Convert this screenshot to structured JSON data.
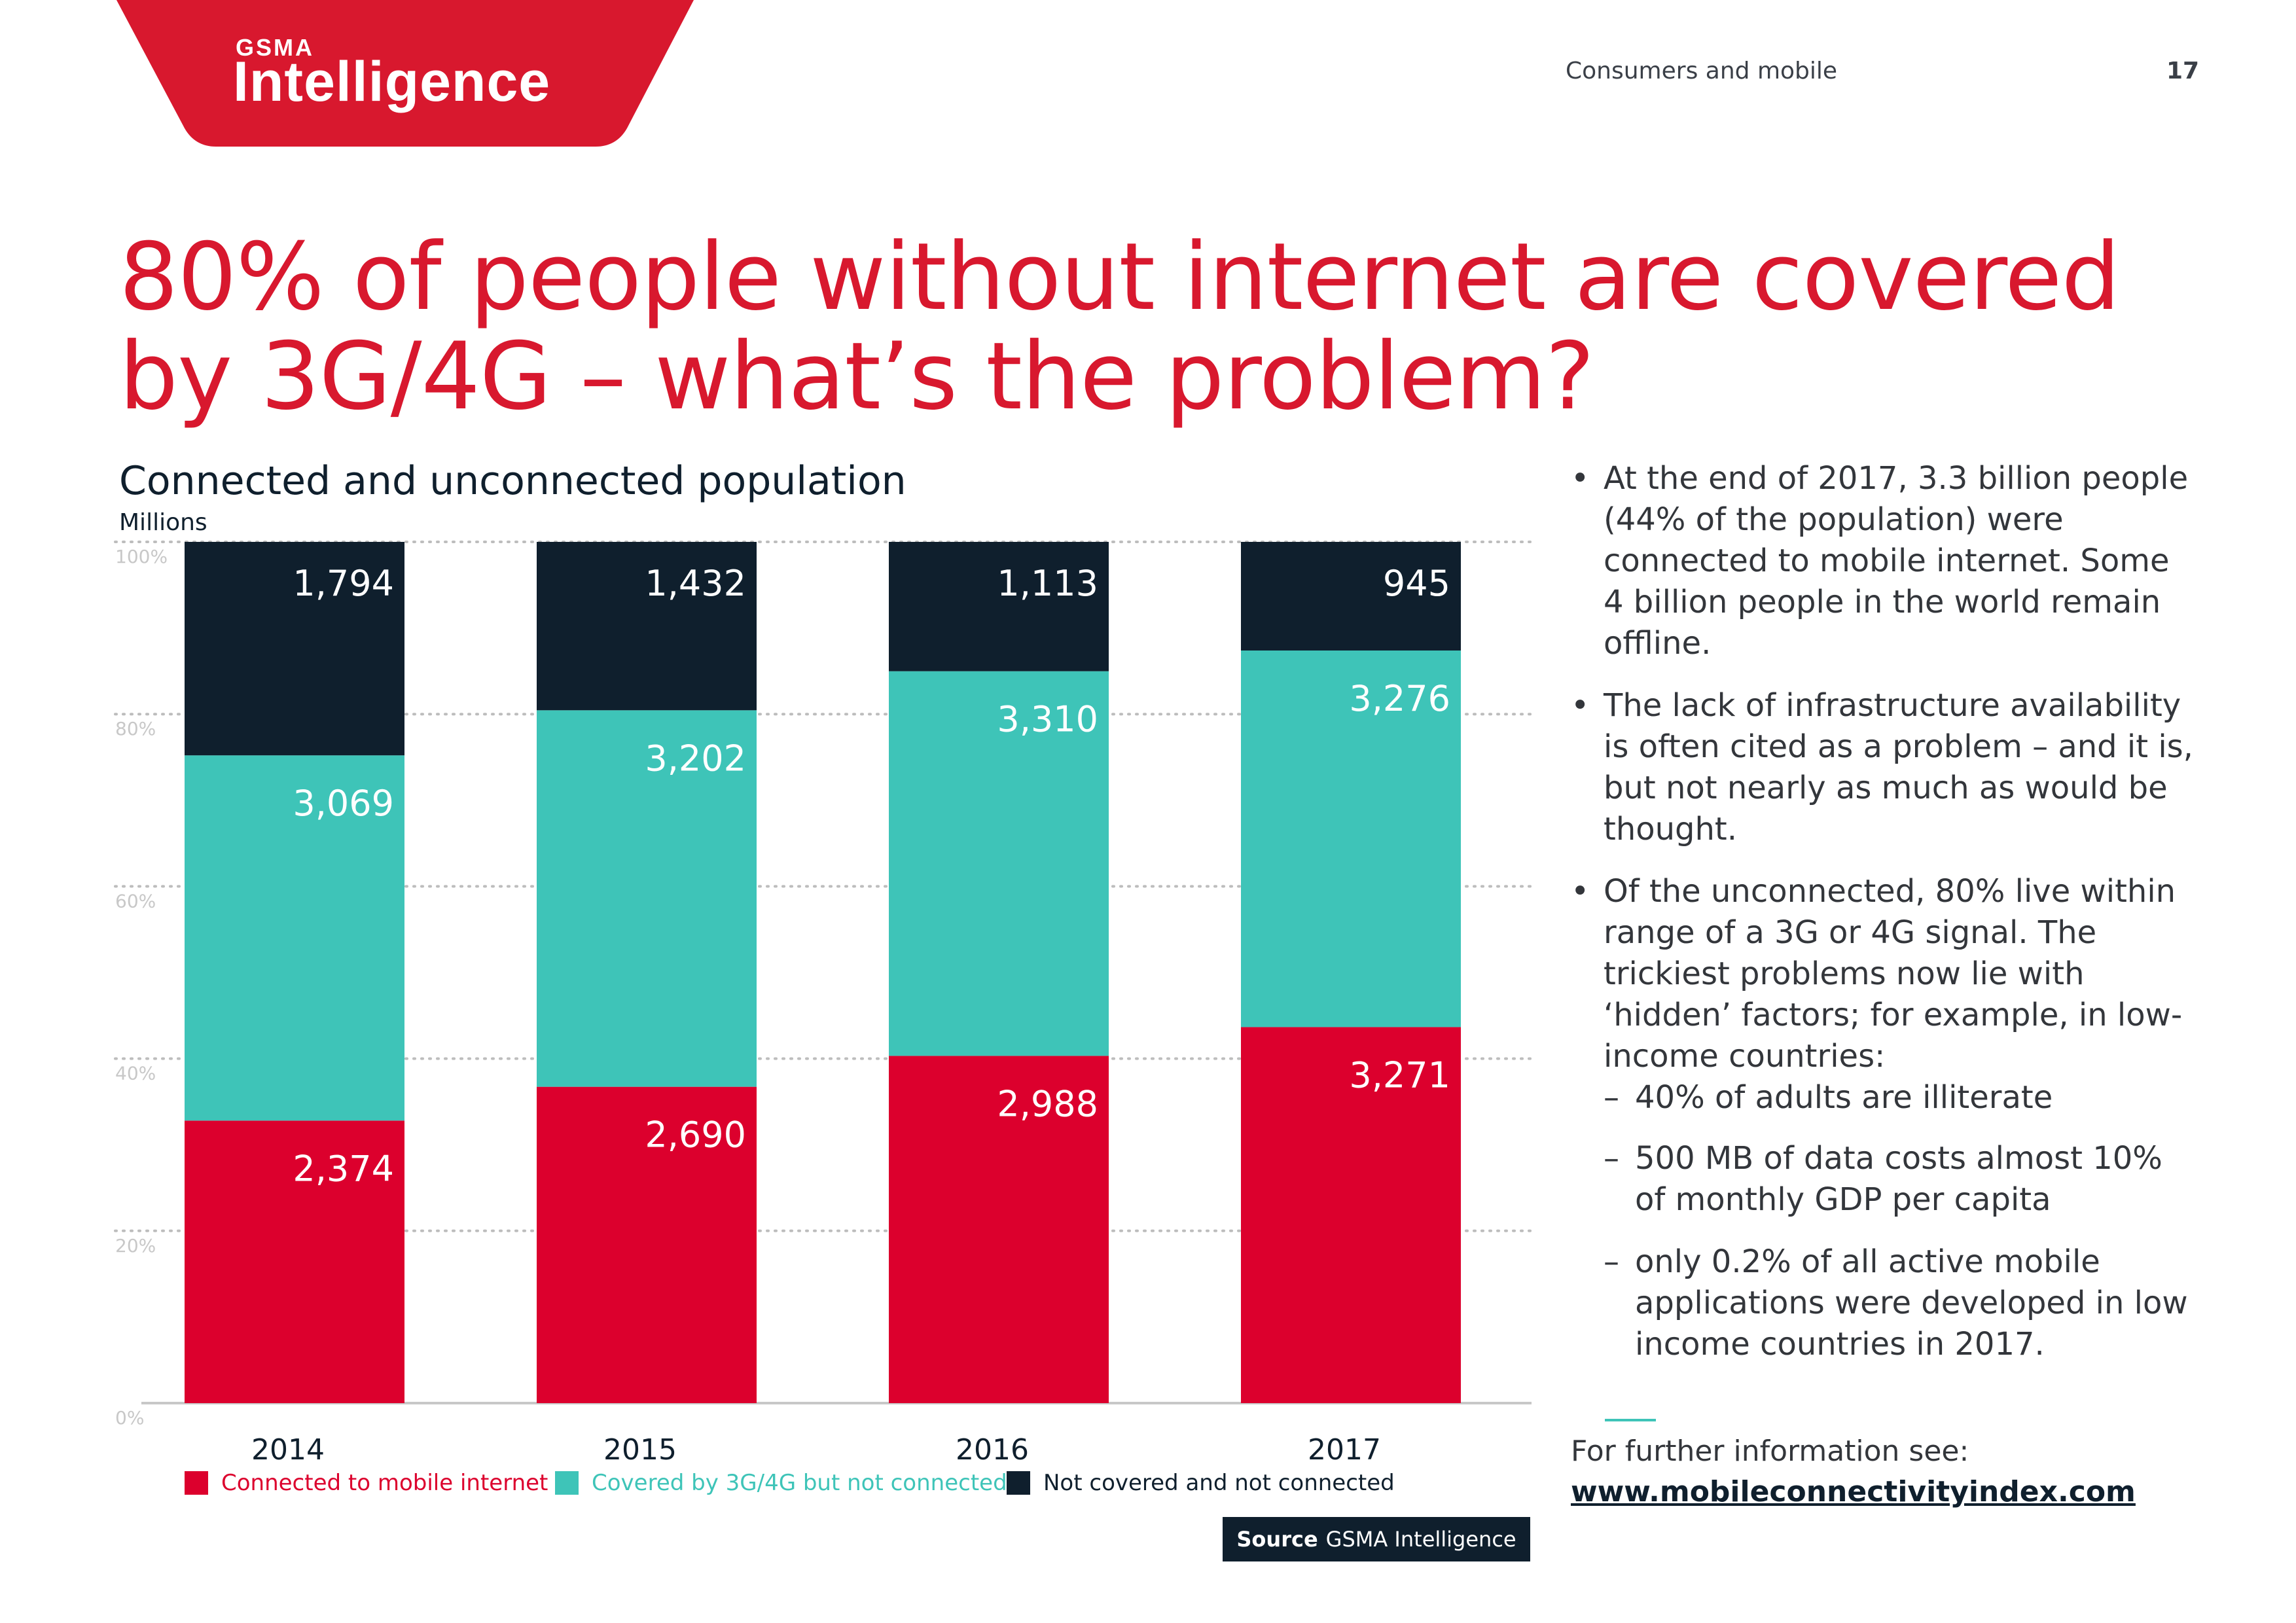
{
  "header": {
    "logo_small": "GSMA",
    "logo_big": "Intelligence",
    "section": "Consumers and mobile",
    "page_number": "17"
  },
  "title": "80% of people without internet are covered by 3G/4G – what’s the problem?",
  "colors": {
    "brand_red": "#d8182e",
    "connected": "#dc002d",
    "covered": "#3ec4b8",
    "not_covered": "#0f1f2d",
    "gridline": "#bdbdbd",
    "axis_tick": "#c8c8c8"
  },
  "chart_data": {
    "type": "bar",
    "stacked": true,
    "normalized": true,
    "title": "Connected and unconnected population",
    "unit_label": "Millions",
    "categories": [
      "2014",
      "2015",
      "2016",
      "2017"
    ],
    "series": [
      {
        "name": "Connected to mobile internet",
        "values": [
          2374,
          2690,
          2988,
          3271
        ],
        "labels": [
          "2,374",
          "2,690",
          "2,988",
          "3,271"
        ]
      },
      {
        "name": "Covered by 3G/4G but not connected",
        "values": [
          3069,
          3202,
          3310,
          3276
        ],
        "labels": [
          "3,069",
          "3,202",
          "3,310",
          "3,276"
        ]
      },
      {
        "name": "Not covered and not connected",
        "values": [
          1794,
          1432,
          1113,
          945
        ],
        "labels": [
          "1,794",
          "1,432",
          "1,113",
          "945"
        ]
      }
    ],
    "y_ticks": [
      "0%",
      "20%",
      "40%",
      "60%",
      "80%",
      "100%"
    ],
    "ylim": [
      0,
      100
    ],
    "legend_position": "bottom",
    "source_label": "Source",
    "source": "GSMA Intelligence"
  },
  "bullets": [
    "At the end of 2017, 3.3 billion people (44% of the population) were connected to mobile internet. Some 4 billion people in the world remain offline.",
    "The lack of infrastructure availability is often cited as a problem – and it is, but not nearly as much as would be thought.",
    "Of the unconnected, 80% live within range of a 3G or 4G signal. The trickiest problems now lie with ‘hidden’ factors; for example, in low-income countries:"
  ],
  "sub_bullets": [
    "40% of adults are illiterate",
    "500 MB of data costs almost 10% of monthly GDP per capita",
    "only 0.2% of all active mobile applications were developed in low income countries in 2017."
  ],
  "footer": {
    "more_info": "For further information see:",
    "link": "www.mobileconnectivityindex.com"
  }
}
